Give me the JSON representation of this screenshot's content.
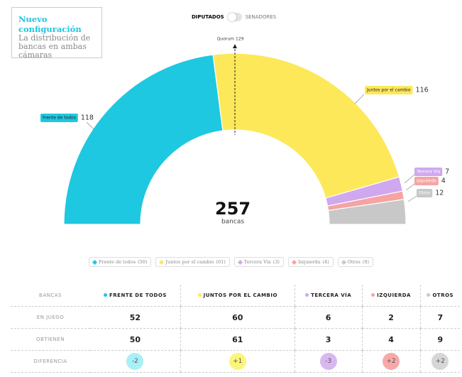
{
  "header": {
    "title": "Nuevo configuración",
    "subtitle": "La distribución de bancas en ambas cámaras"
  },
  "toggle": {
    "left": "DIPUTADOS",
    "right": "SENADORES"
  },
  "chart_data": {
    "type": "parliament",
    "categories": [
      "Frente de todos",
      "Juntos por el cambio",
      "Tercera Vía",
      "Izquierda",
      "Otros"
    ],
    "values": [
      118,
      116,
      7,
      4,
      12
    ],
    "colors": [
      "#1ec8e0",
      "#fde85a",
      "#cfa8f0",
      "#f5a3a3",
      "#c8c8c8"
    ],
    "total": 257,
    "total_label": "bancas",
    "quorum_label": "Quorum",
    "quorum": 129
  },
  "legend": [
    {
      "name": "Frente de todos",
      "count": "(50)"
    },
    {
      "name": "Juntos por el cambio",
      "count": "(61)"
    },
    {
      "name": "Tercera Vía",
      "count": "(3)"
    },
    {
      "name": "Izquierda",
      "count": "(4)"
    },
    {
      "name": "Otros",
      "count": "(9)"
    }
  ],
  "table": {
    "header": [
      "BANCAS",
      "FRENTE DE TODOS",
      "JUNTOS POR EL CAMBIO",
      "TERCERA VÍA",
      "IZQUIERDA",
      "OTROS"
    ],
    "rows": [
      [
        "EN JUEGO",
        52,
        60,
        6,
        2,
        7
      ],
      [
        "OBTIENEN",
        50,
        61,
        3,
        4,
        9
      ],
      [
        "DIFERENCIA",
        "-2",
        "+1",
        "-3",
        "+2",
        "+2"
      ]
    ]
  }
}
